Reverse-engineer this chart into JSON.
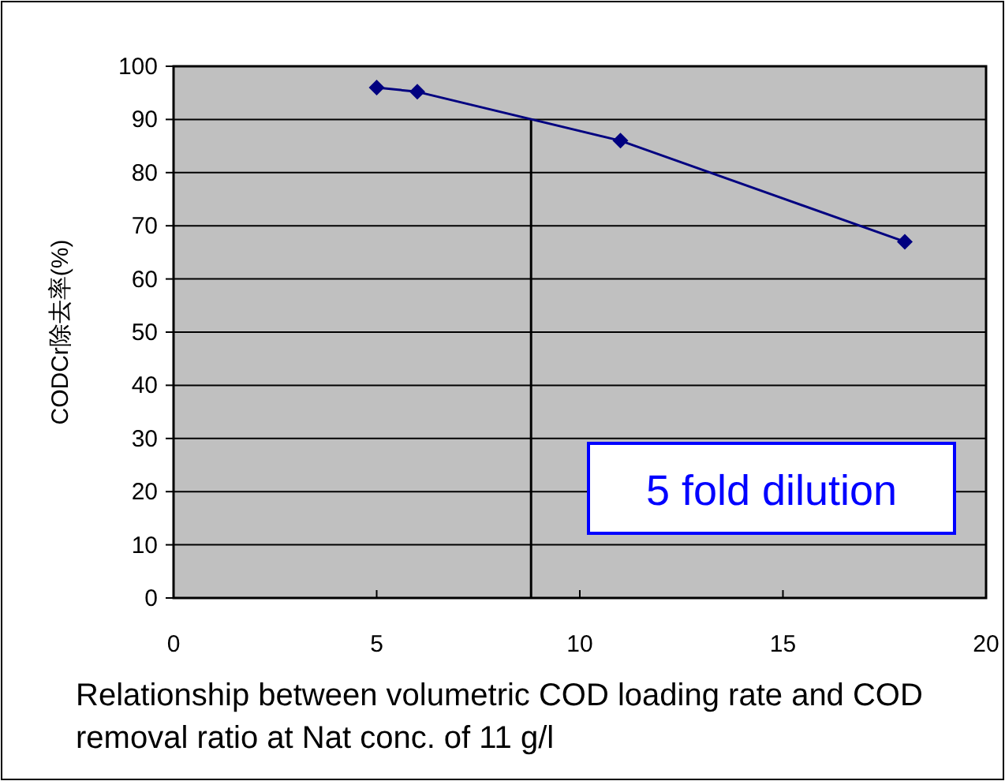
{
  "chart_data": {
    "type": "line",
    "xlabel": "Relationship between volumetric COD loading rate and COD removal ratio at Nat conc. of 11 g/l",
    "ylabel": "CODCr除去率(%)",
    "x": [
      5,
      6,
      11,
      18
    ],
    "series": [
      {
        "color": "#000080",
        "values": [
          96,
          95.2,
          86,
          67
        ]
      }
    ],
    "xlim": [
      0,
      20
    ],
    "xticks": [
      0,
      5,
      10,
      15,
      20
    ],
    "ylim": [
      0,
      100
    ],
    "yticks": [
      0,
      10,
      20,
      30,
      40,
      50,
      60,
      70,
      80,
      90,
      100
    ],
    "grid": "y",
    "marker": "diamond",
    "line_style": "solid",
    "ref_lines": [
      {
        "axis": "x",
        "value": 8.8,
        "color": "#000000"
      }
    ],
    "annotations": [
      "5 fold dilution"
    ]
  }
}
